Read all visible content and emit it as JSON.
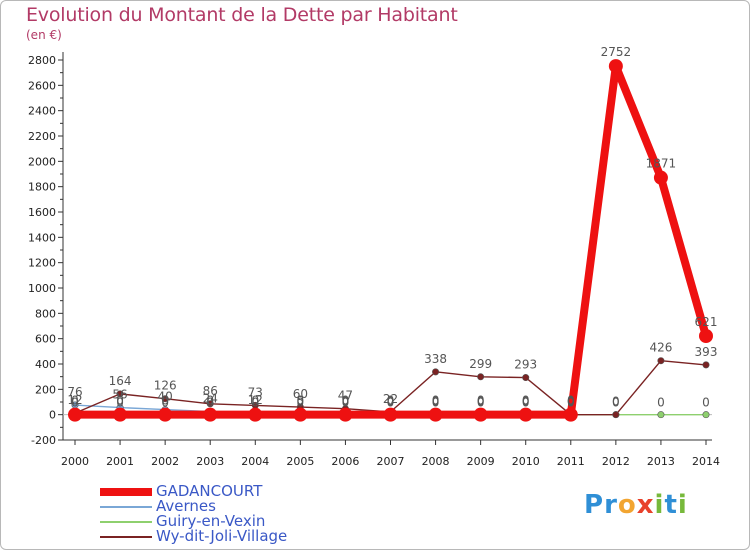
{
  "title": "Evolution du Montant de la Dette par Habitant",
  "subtitle": "(en €)",
  "brand": {
    "letters": [
      "P",
      "r",
      "o",
      "x",
      "i",
      "t",
      "i"
    ],
    "colors": [
      "#2f8fd6",
      "#2f8fd6",
      "#f2a531",
      "#e8412b",
      "#77b93b",
      "#2f8fd6",
      "#77b93b"
    ]
  },
  "chart_data": {
    "type": "line",
    "x": [
      "2000",
      "2001",
      "2002",
      "2003",
      "2004",
      "2005",
      "2006",
      "2007",
      "2008",
      "2009",
      "2010",
      "2011",
      "2012",
      "2013",
      "2014"
    ],
    "ylim": [
      -200,
      2800
    ],
    "yticks": [
      -200,
      0,
      200,
      400,
      600,
      800,
      1000,
      1200,
      1400,
      1600,
      1800,
      2000,
      2200,
      2400,
      2600,
      2800
    ],
    "grid": false,
    "series": [
      {
        "name": "GADANCOURT",
        "color": "#ee1111",
        "values": [
          0,
          0,
          0,
          0,
          0,
          0,
          0,
          0,
          0,
          0,
          0,
          0,
          2752,
          1871,
          621
        ],
        "labels": [
          "0",
          "0",
          "0",
          "0",
          "0",
          "0",
          "0",
          "0",
          "0",
          "0",
          "0",
          "0",
          "2752",
          "1871",
          "621"
        ]
      },
      {
        "name": "Avernes",
        "color": "#7aa7d6",
        "values": [
          76,
          56,
          40,
          24,
          12,
          5,
          0,
          0,
          0,
          0,
          0,
          0,
          null,
          null,
          null
        ],
        "labels": [
          "76",
          "56",
          "40",
          "24",
          "12",
          "5",
          "0",
          "0",
          "0",
          "0",
          "0",
          "0",
          "",
          "",
          ""
        ]
      },
      {
        "name": "Guiry-en-Vexin",
        "color": "#8ed06e",
        "values": [
          0,
          0,
          0,
          0,
          0,
          0,
          0,
          0,
          0,
          0,
          0,
          0,
          0,
          0,
          0
        ],
        "labels": [
          "0",
          "0",
          "0",
          "0",
          "0",
          "0",
          "0",
          "0",
          "0",
          "0",
          "0",
          "0",
          "0",
          "0",
          "0"
        ]
      },
      {
        "name": "Wy-dit-Joli-Village",
        "color": "#7a2323",
        "values": [
          12,
          164,
          126,
          86,
          73,
          60,
          47,
          22,
          338,
          299,
          293,
          0,
          0,
          426,
          393
        ],
        "labels": [
          "12",
          "164",
          "126",
          "86",
          "73",
          "60",
          "47",
          "22",
          "338",
          "299",
          "293",
          "0",
          "0",
          "426",
          "393"
        ]
      }
    ]
  }
}
